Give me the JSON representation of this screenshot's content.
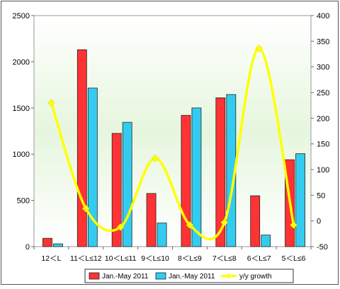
{
  "chart_data": {
    "type": "bar",
    "categories": [
      "12＜L",
      "11＜L≤12",
      "10＜L≤11",
      "9＜L≤10",
      "8＜L≤9",
      "7＜L≤8",
      "6＜L≤7",
      "5＜L≤6"
    ],
    "series": [
      {
        "name": "Jan.-May 2011",
        "type": "bar",
        "axis": "left",
        "color": "#ff3333",
        "values": [
          90,
          2130,
          1225,
          575,
          1420,
          1610,
          550,
          940
        ]
      },
      {
        "name": "Jan.-May 2011",
        "type": "bar",
        "axis": "left",
        "color": "#33ccf0",
        "values": [
          30,
          1715,
          1345,
          255,
          1500,
          1645,
          125,
          1005
        ]
      },
      {
        "name": "y/y growth",
        "type": "line",
        "axis": "right",
        "color": "#ffff00",
        "values": [
          230,
          24,
          -12,
          122,
          -8,
          -3,
          336,
          -8
        ]
      }
    ],
    "y_left": {
      "min": 0,
      "max": 2500,
      "ticks": [
        "0",
        "500",
        "1000",
        "1500",
        "2000",
        "2500"
      ]
    },
    "y_right": {
      "min": -50,
      "max": 400,
      "ticks": [
        "-50",
        "0",
        "50",
        "100",
        "150",
        "200",
        "250",
        "300",
        "350",
        "400"
      ]
    },
    "legend_position": "bottom",
    "grid": false,
    "plot_background": [
      "#eaf8e4",
      "#ffffff"
    ]
  }
}
